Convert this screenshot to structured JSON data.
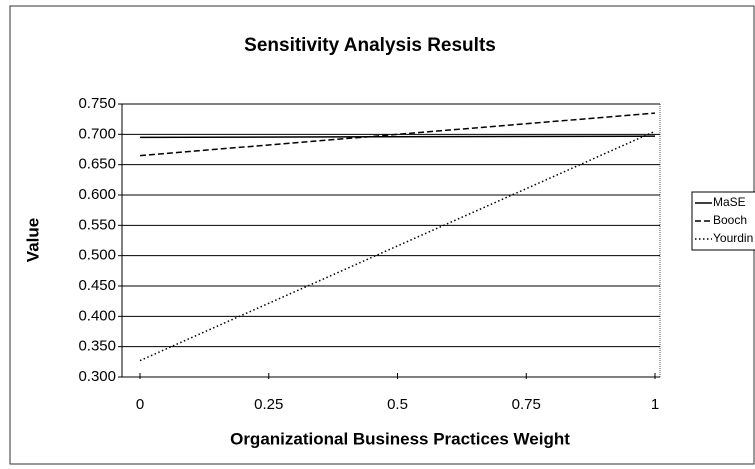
{
  "chart_data": {
    "type": "line",
    "title": "Sensitivity Analysis Results",
    "xlabel": "Organizational Business Practices Weight",
    "ylabel": "Value",
    "x": [
      0,
      1
    ],
    "series": [
      {
        "name": "MaSE",
        "color": "#000000",
        "dash": "solid",
        "values": [
          0.695,
          0.697
        ]
      },
      {
        "name": "Booch",
        "color": "#000000",
        "dash": "dashed",
        "values": [
          0.665,
          0.735
        ]
      },
      {
        "name": "Yourdin",
        "color": "#000000",
        "dash": "dotted",
        "values": [
          0.327,
          0.705
        ]
      }
    ],
    "xlim": [
      0,
      1
    ],
    "xticks": [
      0,
      0.25,
      0.5,
      0.75,
      1
    ],
    "ylim": [
      0.3,
      0.75
    ],
    "yticks": [
      {
        "value": 0.3,
        "label": "0.300"
      },
      {
        "value": 0.35,
        "label": "0.350"
      },
      {
        "value": 0.4,
        "label": "0.400"
      },
      {
        "value": 0.45,
        "label": "0.450"
      },
      {
        "value": 0.5,
        "label": "0.500"
      },
      {
        "value": 0.55,
        "label": "0.550"
      },
      {
        "value": 0.6,
        "label": "0.600"
      },
      {
        "value": 0.65,
        "label": "0.650"
      },
      {
        "value": 0.7,
        "label": "0.700"
      },
      {
        "value": 0.75,
        "label": "0.750"
      }
    ],
    "grid": true,
    "legend": "right"
  }
}
